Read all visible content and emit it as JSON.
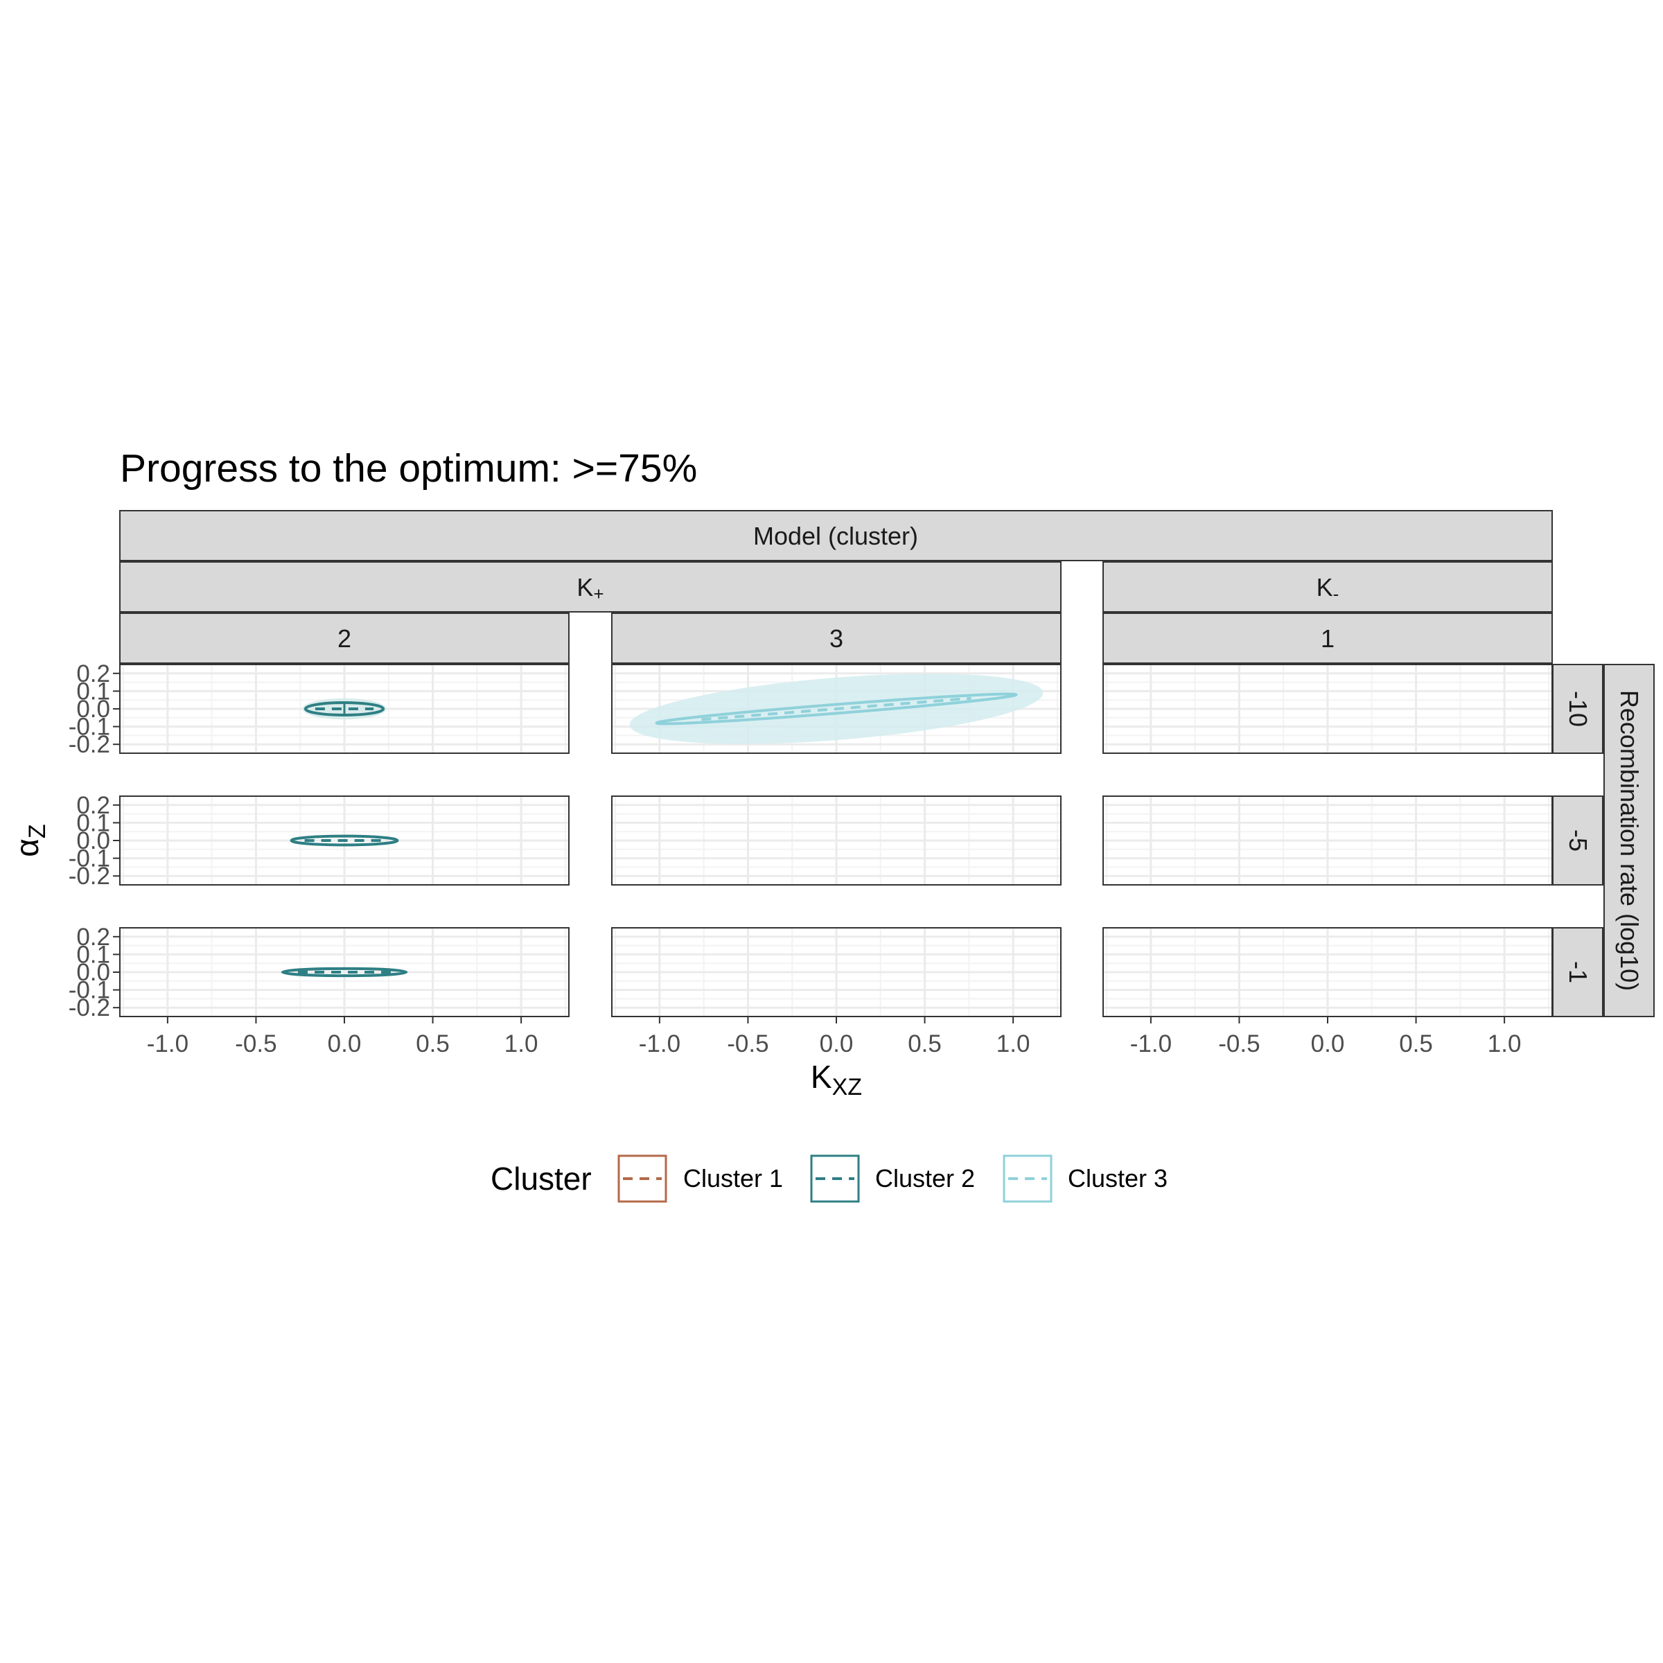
{
  "title": "Progress to the optimum: >=75%",
  "strips": {
    "top": "Model (cluster)",
    "models": [
      {
        "label_main": "K",
        "label_sub": "+"
      },
      {
        "label_main": "K",
        "label_sub": "-"
      }
    ],
    "clusters": [
      "2",
      "3",
      "1"
    ],
    "rows": [
      "-10",
      "-5",
      "-1"
    ],
    "row_title": "Recombination rate (log10)"
  },
  "axes": {
    "xlabel_main": "K",
    "xlabel_sub": "XZ",
    "ylabel_main": "α",
    "ylabel_sub": "Z",
    "x_ticks": [
      "-1.0",
      "-0.5",
      "0.0",
      "0.5",
      "1.0"
    ],
    "y_ticks": [
      "0.2",
      "0.1",
      "0.0",
      "-0.1",
      "-0.2"
    ]
  },
  "legend": {
    "title": "Cluster",
    "items": [
      "Cluster 1",
      "Cluster 2",
      "Cluster 3"
    ]
  },
  "colors": {
    "cluster1": "#b5694a",
    "cluster2": "#2e7f84",
    "cluster3": "#8fd1da",
    "cluster3_fill": "#d3ecf0",
    "strip_bg": "#d9d9d9",
    "grid_major": "#ebebeb",
    "grid_minor": "#f3f3f3"
  },
  "chart_data": {
    "type": "scatter",
    "description_of_marks": "ellipses summarizing each cluster per panel",
    "xlim": [
      -1.27,
      1.27
    ],
    "ylim": [
      -0.25,
      0.25
    ],
    "panels": [
      {
        "model": "K+",
        "cluster": "2",
        "rec_rate": "-10",
        "series": "Cluster 2",
        "center": [
          0.0,
          0.0
        ],
        "radius_x": 0.22,
        "radius_y": 0.035,
        "angle_deg": 0,
        "shaded": true
      },
      {
        "model": "K+",
        "cluster": "3",
        "rec_rate": "-10",
        "series": "Cluster 3",
        "center": [
          0.0,
          0.0
        ],
        "radius_x": 1.02,
        "radius_y": 0.025,
        "angle_deg": 4.5,
        "shaded": true
      },
      {
        "model": "K+",
        "cluster": "2",
        "rec_rate": "-5",
        "series": "Cluster 2",
        "center": [
          0.0,
          0.0
        ],
        "radius_x": 0.3,
        "radius_y": 0.025,
        "angle_deg": 0,
        "shaded": false
      },
      {
        "model": "K+",
        "cluster": "2",
        "rec_rate": "-1",
        "series": "Cluster 2",
        "center": [
          0.0,
          0.0
        ],
        "radius_x": 0.35,
        "radius_y": 0.02,
        "angle_deg": 0,
        "shaded": false
      }
    ]
  }
}
